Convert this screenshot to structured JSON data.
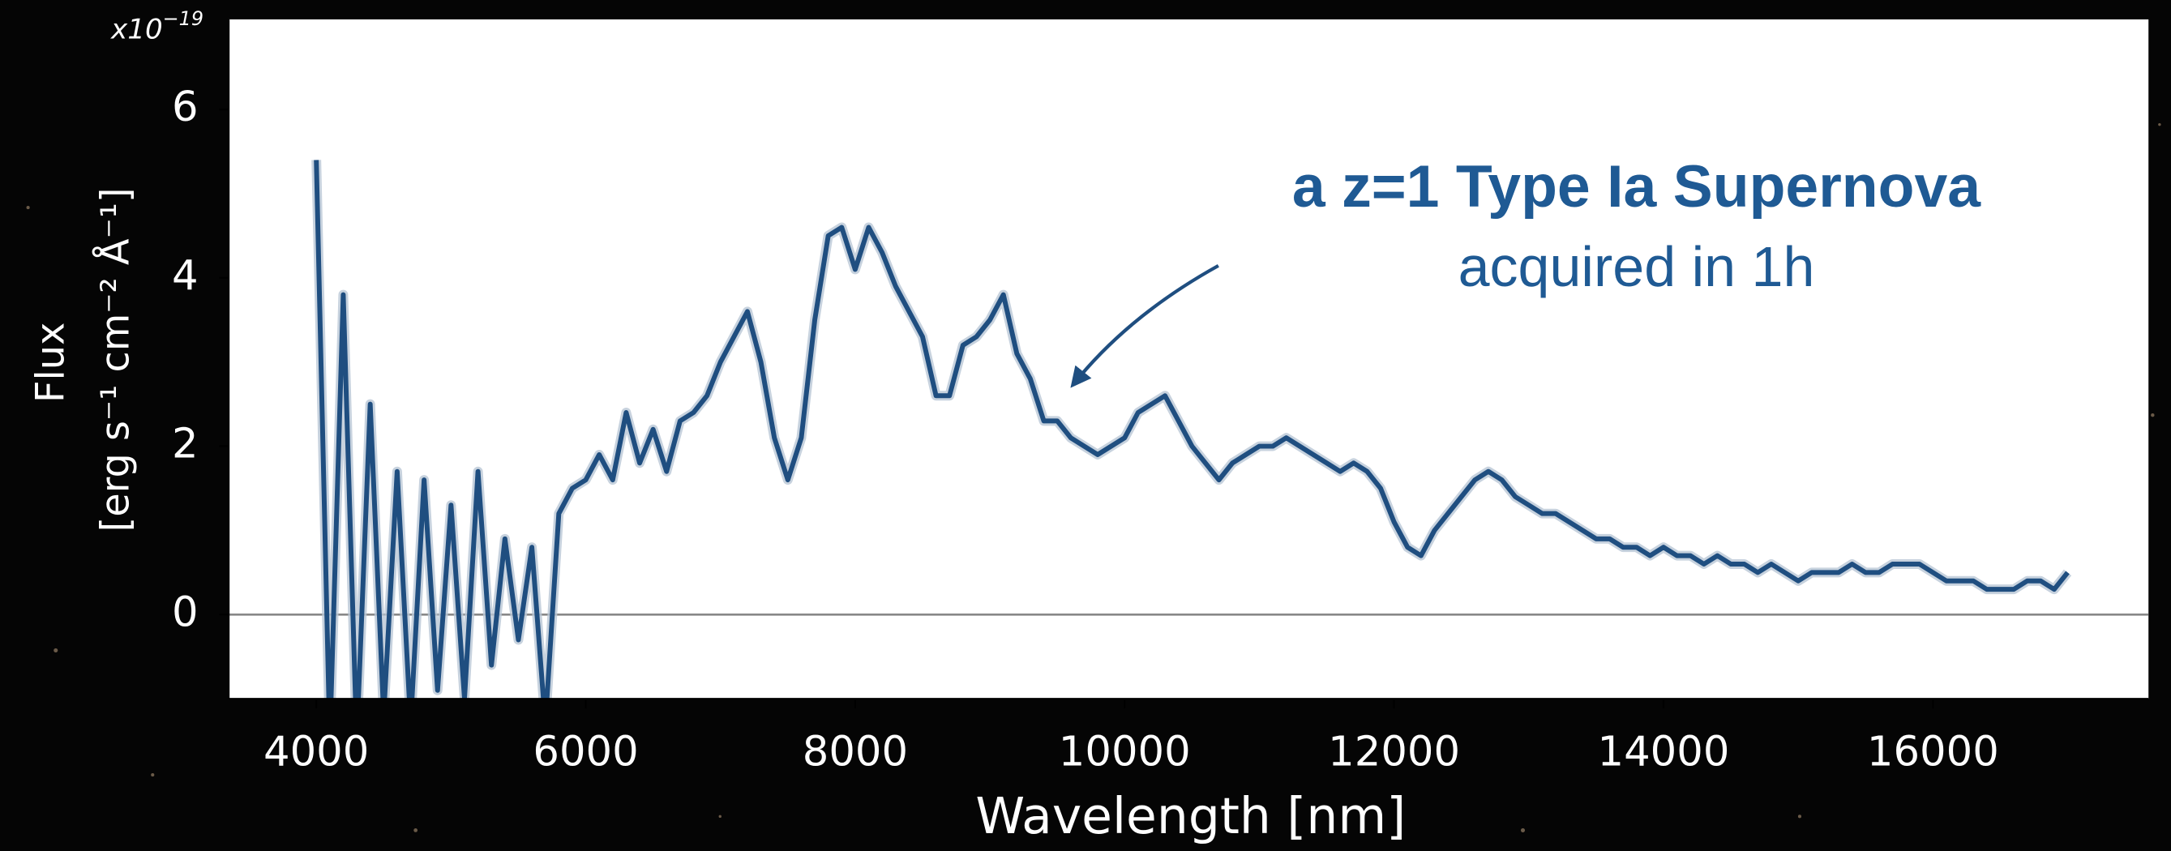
{
  "chart_data": {
    "type": "line",
    "title": "a z=1 Type Ia Supernova",
    "subtitle": "acquired in 1h",
    "xlabel": "Wavelength [nm]",
    "ylabel": [
      "Flux",
      "[erg s⁻¹ cm⁻² Å⁻¹]"
    ],
    "offset_text": {
      "base": "x10",
      "exponent": "−19"
    },
    "color": "#1f4e80",
    "hline": 0,
    "xlim": [
      3350,
      17600
    ],
    "ylim": [
      -1,
      7.07
    ],
    "xticks": [
      4000,
      6000,
      8000,
      10000,
      12000,
      14000,
      16000
    ],
    "yticks": [
      0,
      2,
      4,
      6
    ],
    "x": [
      4000,
      4100,
      4200,
      4300,
      4400,
      4500,
      4600,
      4700,
      4800,
      4900,
      5000,
      5100,
      5200,
      5300,
      5400,
      5500,
      5600,
      5700,
      5800,
      5900,
      6000,
      6100,
      6200,
      6300,
      6400,
      6500,
      6600,
      6700,
      6800,
      6900,
      7000,
      7100,
      7200,
      7300,
      7400,
      7500,
      7600,
      7700,
      7800,
      7900,
      8000,
      8100,
      8200,
      8300,
      8400,
      8500,
      8600,
      8700,
      8800,
      8900,
      9000,
      9100,
      9200,
      9300,
      9400,
      9500,
      9600,
      9700,
      9800,
      9900,
      10000,
      10100,
      10200,
      10300,
      10400,
      10500,
      10600,
      10700,
      10800,
      10900,
      11000,
      11100,
      11200,
      11300,
      11400,
      11500,
      11600,
      11700,
      11800,
      11900,
      12000,
      12100,
      12200,
      12300,
      12400,
      12500,
      12600,
      12700,
      12800,
      12900,
      13000,
      13100,
      13200,
      13300,
      13400,
      13500,
      13600,
      13700,
      13800,
      13900,
      14000,
      14100,
      14200,
      14300,
      14400,
      14500,
      14600,
      14700,
      14800,
      14900,
      15000,
      15100,
      15200,
      15300,
      15400,
      15500,
      15600,
      15700,
      15800,
      15900,
      16000,
      16100,
      16200,
      16300,
      16400,
      16500,
      16600,
      16700,
      16800,
      16900,
      17000
    ],
    "values": [
      5.4,
      -1.5,
      3.8,
      -1.5,
      2.5,
      -1.2,
      1.7,
      -1.3,
      1.6,
      -0.9,
      1.3,
      -1.0,
      1.7,
      -0.6,
      0.9,
      -0.3,
      0.8,
      -1.3,
      1.2,
      1.5,
      1.6,
      1.9,
      1.6,
      2.4,
      1.8,
      2.2,
      1.7,
      2.3,
      2.4,
      2.6,
      3.0,
      3.3,
      3.6,
      3.0,
      2.1,
      1.6,
      2.1,
      3.5,
      4.5,
      4.6,
      4.1,
      4.6,
      4.3,
      3.9,
      3.6,
      3.3,
      2.6,
      2.6,
      3.2,
      3.3,
      3.5,
      3.8,
      3.1,
      2.8,
      2.3,
      2.3,
      2.1,
      2.0,
      1.9,
      2.0,
      2.1,
      2.4,
      2.5,
      2.6,
      2.3,
      2.0,
      1.8,
      1.6,
      1.8,
      1.9,
      2.0,
      2.0,
      2.1,
      2.0,
      1.9,
      1.8,
      1.7,
      1.8,
      1.7,
      1.5,
      1.1,
      0.8,
      0.7,
      1.0,
      1.2,
      1.4,
      1.6,
      1.7,
      1.6,
      1.4,
      1.3,
      1.2,
      1.2,
      1.1,
      1.0,
      0.9,
      0.9,
      0.8,
      0.8,
      0.7,
      0.8,
      0.7,
      0.7,
      0.6,
      0.7,
      0.6,
      0.6,
      0.5,
      0.6,
      0.5,
      0.4,
      0.5,
      0.5,
      0.5,
      0.6,
      0.5,
      0.5,
      0.6,
      0.6,
      0.6,
      0.5,
      0.4,
      0.4,
      0.4,
      0.3,
      0.3,
      0.3,
      0.4,
      0.4,
      0.3,
      0.5
    ]
  }
}
